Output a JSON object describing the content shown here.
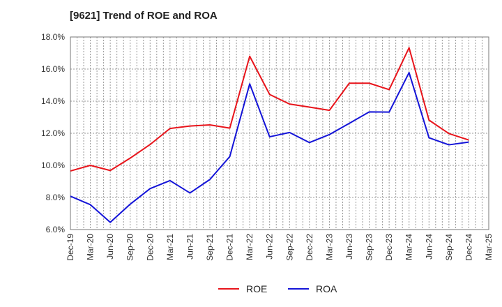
{
  "chart_data": {
    "type": "line",
    "title": "[9621]  Trend of ROE and ROA",
    "xlabel": "",
    "ylabel": "",
    "ylim": [
      6.0,
      18.0
    ],
    "y_ticks": [
      "6.0%",
      "8.0%",
      "10.0%",
      "12.0%",
      "14.0%",
      "16.0%",
      "18.0%"
    ],
    "categories": [
      "Dec-19",
      "Mar-20",
      "Jun-20",
      "Sep-20",
      "Dec-20",
      "Mar-21",
      "Jun-21",
      "Sep-21",
      "Dec-21",
      "Mar-22",
      "Jun-22",
      "Sep-22",
      "Dec-22",
      "Mar-23",
      "Jun-23",
      "Sep-23",
      "Dec-23",
      "Mar-24",
      "Jun-24",
      "Sep-24",
      "Dec-24",
      "Mar-25"
    ],
    "series": [
      {
        "name": "ROE",
        "color": "#e8141b",
        "values": [
          9.65,
          10.0,
          9.68,
          10.45,
          11.3,
          12.3,
          12.45,
          12.52,
          12.32,
          16.8,
          14.42,
          13.82,
          13.63,
          13.43,
          15.12,
          15.12,
          14.72,
          17.33,
          12.82,
          11.98,
          11.58,
          null
        ]
      },
      {
        "name": "ROA",
        "color": "#1414d8",
        "values": [
          8.08,
          7.55,
          6.45,
          7.58,
          8.55,
          9.05,
          8.28,
          9.12,
          10.55,
          15.08,
          11.78,
          12.05,
          11.42,
          11.92,
          12.62,
          13.33,
          13.32,
          15.78,
          11.72,
          11.28,
          11.45,
          null
        ]
      }
    ],
    "grid": true,
    "legend_position": "bottom"
  }
}
